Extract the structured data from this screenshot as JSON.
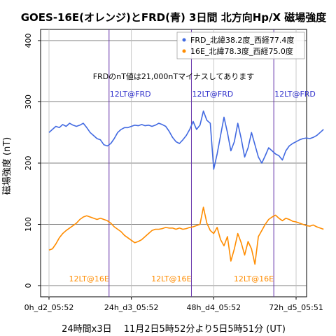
{
  "chart_data": {
    "type": "line",
    "title": "GOES-16E(オレンジ)とFRD(青) 3日間 北方向Hp/X 磁場強度",
    "xlabel": "24時間x3日　 11月2日5時52分より5日5時51分 (UT)",
    "ylabel": "磁場強度 (nT)",
    "note": "FRDのnT値は21,000nTマイナスしてあります",
    "x_unit": "hours",
    "xlim": [
      0,
      72
    ],
    "ylim": [
      -15,
      415
    ],
    "x_ticks": [
      {
        "x": 0,
        "label": "0h_d2_05:52"
      },
      {
        "x": 24,
        "label": "24h_d3_05:52"
      },
      {
        "x": 48,
        "label": "48h_d4_05:52"
      },
      {
        "x": 72,
        "label": "72h_d5_05:51"
      }
    ],
    "y_ticks": [
      0,
      100,
      200,
      300,
      400
    ],
    "grid": true,
    "legend_position": "top-right",
    "markers": {
      "frd": {
        "label": "12LT@FRD",
        "x": [
          17.5,
          41.5,
          65.5
        ],
        "color": "#3333cc"
      },
      "goes": {
        "label": "12LT@16E",
        "x": [
          17.5,
          41.5,
          65.5
        ],
        "color": "#ff8c00"
      },
      "line_color": "#6633aa"
    },
    "series": [
      {
        "name": "FRD_北緯38.2度_西経77.4度",
        "color": "#4169e1",
        "points": [
          [
            0,
            250
          ],
          [
            1,
            255
          ],
          [
            2,
            260
          ],
          [
            3,
            258
          ],
          [
            4,
            263
          ],
          [
            5,
            260
          ],
          [
            6,
            265
          ],
          [
            7,
            262
          ],
          [
            8,
            260
          ],
          [
            9,
            262
          ],
          [
            10,
            265
          ],
          [
            11,
            258
          ],
          [
            12,
            250
          ],
          [
            13,
            245
          ],
          [
            14,
            240
          ],
          [
            15,
            238
          ],
          [
            16,
            230
          ],
          [
            17,
            228
          ],
          [
            18,
            232
          ],
          [
            19,
            240
          ],
          [
            20,
            250
          ],
          [
            21,
            255
          ],
          [
            22,
            258
          ],
          [
            23,
            258
          ],
          [
            24,
            260
          ],
          [
            25,
            262
          ],
          [
            26,
            261
          ],
          [
            27,
            263
          ],
          [
            28,
            261
          ],
          [
            29,
            262
          ],
          [
            30,
            260
          ],
          [
            31,
            262
          ],
          [
            32,
            265
          ],
          [
            33,
            263
          ],
          [
            34,
            260
          ],
          [
            35,
            252
          ],
          [
            36,
            242
          ],
          [
            37,
            235
          ],
          [
            38,
            232
          ],
          [
            39,
            238
          ],
          [
            40,
            245
          ],
          [
            41,
            255
          ],
          [
            42,
            268
          ],
          [
            43,
            255
          ],
          [
            44,
            262
          ],
          [
            45,
            285
          ],
          [
            46,
            270
          ],
          [
            47,
            265
          ],
          [
            48,
            190
          ],
          [
            49,
            215
          ],
          [
            50,
            245
          ],
          [
            51,
            275
          ],
          [
            52,
            250
          ],
          [
            53,
            220
          ],
          [
            54,
            235
          ],
          [
            55,
            265
          ],
          [
            56,
            240
          ],
          [
            57,
            210
          ],
          [
            58,
            225
          ],
          [
            59,
            250
          ],
          [
            60,
            230
          ],
          [
            61,
            210
          ],
          [
            62,
            200
          ],
          [
            63,
            212
          ],
          [
            64,
            225
          ],
          [
            65,
            220
          ],
          [
            66,
            215
          ],
          [
            67,
            212
          ],
          [
            68,
            205
          ],
          [
            69,
            220
          ],
          [
            70,
            228
          ],
          [
            71,
            232
          ],
          [
            72,
            235
          ],
          [
            73,
            238
          ],
          [
            74,
            240
          ],
          [
            75,
            241
          ],
          [
            76,
            240
          ],
          [
            77,
            242
          ],
          [
            78,
            245
          ],
          [
            79,
            250
          ],
          [
            80,
            255
          ]
        ]
      },
      {
        "name": "16E_北緯78.3度_西経75.0度",
        "color": "#ff8c00",
        "points": [
          [
            0,
            58
          ],
          [
            1,
            60
          ],
          [
            2,
            68
          ],
          [
            3,
            78
          ],
          [
            4,
            85
          ],
          [
            5,
            90
          ],
          [
            6,
            94
          ],
          [
            7,
            98
          ],
          [
            8,
            102
          ],
          [
            9,
            108
          ],
          [
            10,
            112
          ],
          [
            11,
            114
          ],
          [
            12,
            112
          ],
          [
            13,
            110
          ],
          [
            14,
            108
          ],
          [
            15,
            110
          ],
          [
            16,
            108
          ],
          [
            17,
            106
          ],
          [
            18,
            102
          ],
          [
            19,
            96
          ],
          [
            20,
            92
          ],
          [
            21,
            88
          ],
          [
            22,
            82
          ],
          [
            23,
            78
          ],
          [
            24,
            74
          ],
          [
            25,
            70
          ],
          [
            26,
            72
          ],
          [
            27,
            75
          ],
          [
            28,
            80
          ],
          [
            29,
            85
          ],
          [
            30,
            90
          ],
          [
            31,
            92
          ],
          [
            32,
            92
          ],
          [
            33,
            93
          ],
          [
            34,
            95
          ],
          [
            35,
            94
          ],
          [
            36,
            94
          ],
          [
            37,
            92
          ],
          [
            38,
            94
          ],
          [
            39,
            92
          ],
          [
            40,
            93
          ],
          [
            41,
            95
          ],
          [
            42,
            96
          ],
          [
            43,
            98
          ],
          [
            44,
            100
          ],
          [
            45,
            128
          ],
          [
            46,
            102
          ],
          [
            47,
            90
          ],
          [
            48,
            85
          ],
          [
            49,
            95
          ],
          [
            50,
            75
          ],
          [
            51,
            65
          ],
          [
            52,
            80
          ],
          [
            53,
            40
          ],
          [
            54,
            60
          ],
          [
            55,
            85
          ],
          [
            56,
            70
          ],
          [
            57,
            50
          ],
          [
            58,
            72
          ],
          [
            59,
            60
          ],
          [
            60,
            35
          ],
          [
            61,
            80
          ],
          [
            62,
            90
          ],
          [
            63,
            100
          ],
          [
            64,
            108
          ],
          [
            65,
            112
          ],
          [
            66,
            115
          ],
          [
            67,
            110
          ],
          [
            68,
            106
          ],
          [
            69,
            110
          ],
          [
            70,
            108
          ],
          [
            71,
            105
          ],
          [
            72,
            104
          ],
          [
            73,
            102
          ],
          [
            74,
            100
          ],
          [
            75,
            98
          ],
          [
            76,
            97
          ],
          [
            77,
            99
          ],
          [
            78,
            96
          ],
          [
            79,
            94
          ],
          [
            80,
            92
          ]
        ]
      }
    ]
  }
}
